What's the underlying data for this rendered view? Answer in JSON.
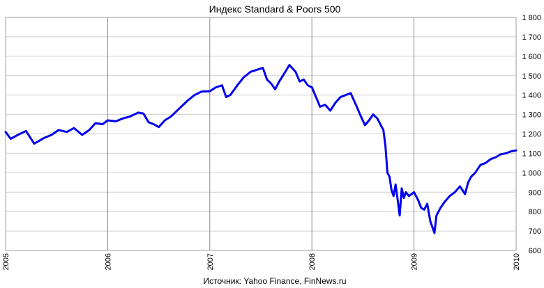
{
  "chart_data": {
    "type": "line",
    "title": "Индекс Standard & Poors 500",
    "source": "Источник:  Yahoo Finance, FinNews.ru",
    "xlabel": "",
    "ylabel": "",
    "grid": true,
    "xlim": [
      2005,
      2010
    ],
    "ylim": [
      600,
      1800
    ],
    "x_ticks": [
      {
        "value": 2005,
        "label": "2005"
      },
      {
        "value": 2006,
        "label": "2006"
      },
      {
        "value": 2007,
        "label": "2007"
      },
      {
        "value": 2008,
        "label": "2008"
      },
      {
        "value": 2009,
        "label": "2009"
      },
      {
        "value": 2010,
        "label": "2010"
      }
    ],
    "y_ticks": [
      {
        "value": 600,
        "label": "600"
      },
      {
        "value": 700,
        "label": "700"
      },
      {
        "value": 800,
        "label": "800"
      },
      {
        "value": 900,
        "label": "900"
      },
      {
        "value": 1000,
        "label": "1 000"
      },
      {
        "value": 1100,
        "label": "1 100"
      },
      {
        "value": 1200,
        "label": "1 200"
      },
      {
        "value": 1300,
        "label": "1 300"
      },
      {
        "value": 1400,
        "label": "1 400"
      },
      {
        "value": 1500,
        "label": "1 500"
      },
      {
        "value": 1600,
        "label": "1 600"
      },
      {
        "value": 1700,
        "label": "1 700"
      },
      {
        "value": 1800,
        "label": "1 800"
      }
    ],
    "series": [
      {
        "color": "#0000ee",
        "x": [
          2005.0,
          2005.05,
          2005.12,
          2005.2,
          2005.28,
          2005.33,
          2005.38,
          2005.45,
          2005.52,
          2005.6,
          2005.67,
          2005.75,
          2005.82,
          2005.88,
          2005.95,
          2006.0,
          2006.08,
          2006.15,
          2006.22,
          2006.3,
          2006.35,
          2006.4,
          2006.45,
          2006.5,
          2006.56,
          2006.62,
          2006.7,
          2006.78,
          2006.85,
          2006.92,
          2007.0,
          2007.06,
          2007.12,
          2007.16,
          2007.2,
          2007.27,
          2007.33,
          2007.4,
          2007.46,
          2007.52,
          2007.56,
          2007.6,
          2007.64,
          2007.68,
          2007.74,
          2007.78,
          2007.84,
          2007.88,
          2007.92,
          2007.96,
          2008.0,
          2008.04,
          2008.08,
          2008.13,
          2008.18,
          2008.23,
          2008.28,
          2008.33,
          2008.38,
          2008.44,
          2008.48,
          2008.52,
          2008.56,
          2008.6,
          2008.64,
          2008.67,
          2008.7,
          2008.72,
          2008.74,
          2008.76,
          2008.78,
          2008.8,
          2008.82,
          2008.84,
          2008.86,
          2008.88,
          2008.9,
          2008.92,
          2008.95,
          2009.0,
          2009.04,
          2009.07,
          2009.1,
          2009.13,
          2009.16,
          2009.18,
          2009.2,
          2009.22,
          2009.26,
          2009.3,
          2009.35,
          2009.4,
          2009.45,
          2009.5,
          2009.53,
          2009.56,
          2009.6,
          2009.65,
          2009.7,
          2009.75,
          2009.8,
          2009.85,
          2009.9,
          2009.95,
          2010.0
        ],
        "y": [
          1210,
          1175,
          1195,
          1215,
          1150,
          1165,
          1180,
          1195,
          1220,
          1210,
          1230,
          1195,
          1220,
          1255,
          1250,
          1270,
          1265,
          1280,
          1290,
          1310,
          1305,
          1260,
          1250,
          1235,
          1270,
          1290,
          1330,
          1370,
          1400,
          1418,
          1420,
          1440,
          1450,
          1390,
          1400,
          1450,
          1490,
          1520,
          1530,
          1540,
          1480,
          1460,
          1430,
          1470,
          1520,
          1555,
          1520,
          1470,
          1480,
          1450,
          1440,
          1390,
          1340,
          1350,
          1320,
          1360,
          1390,
          1400,
          1410,
          1340,
          1290,
          1245,
          1270,
          1300,
          1280,
          1250,
          1220,
          1140,
          1000,
          980,
          910,
          880,
          940,
          860,
          780,
          920,
          870,
          900,
          880,
          900,
          860,
          820,
          810,
          840,
          750,
          720,
          690,
          780,
          820,
          850,
          880,
          900,
          930,
          890,
          950,
          980,
          1000,
          1040,
          1050,
          1070,
          1080,
          1095,
          1100,
          1110,
          1115
        ]
      }
    ]
  }
}
